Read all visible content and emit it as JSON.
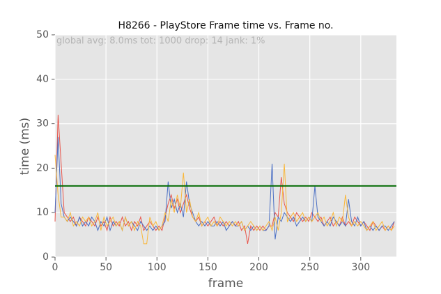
{
  "chart_data": {
    "type": "line",
    "title": "H8266 - PlayStore Frame time vs. Frame no.",
    "annotation": "global avg: 8.0ms tot: 1000 drop: 14 jank: 1%",
    "x_label": "frame",
    "y_label": "time (ms)",
    "xlim": [
      0,
      335
    ],
    "ylim": [
      0,
      50
    ],
    "xticks": [
      0,
      50,
      100,
      150,
      200,
      250,
      300
    ],
    "yticks": [
      0,
      10,
      20,
      30,
      40,
      50
    ],
    "grid": true,
    "threshold": {
      "value": 16,
      "color": "#0a6e0a"
    },
    "x": [
      0,
      3,
      6,
      9,
      12,
      15,
      18,
      21,
      24,
      27,
      30,
      33,
      36,
      39,
      42,
      45,
      48,
      51,
      54,
      57,
      60,
      63,
      66,
      69,
      72,
      75,
      78,
      81,
      84,
      87,
      90,
      93,
      96,
      99,
      102,
      105,
      108,
      111,
      114,
      117,
      120,
      123,
      126,
      129,
      132,
      135,
      138,
      141,
      144,
      147,
      150,
      153,
      156,
      159,
      162,
      165,
      168,
      171,
      174,
      177,
      180,
      183,
      186,
      189,
      192,
      195,
      198,
      201,
      204,
      207,
      210,
      213,
      216,
      219,
      222,
      225,
      228,
      231,
      234,
      237,
      240,
      243,
      246,
      249,
      252,
      255,
      258,
      261,
      264,
      267,
      270,
      273,
      276,
      279,
      282,
      285,
      288,
      291,
      294,
      297,
      300,
      303,
      306,
      309,
      312,
      315,
      318,
      321,
      324,
      327,
      330,
      333
    ],
    "series": [
      {
        "color": "#e8544a",
        "values": [
          8,
          32,
          21,
          10,
          9,
          8,
          9,
          7,
          9,
          8,
          7,
          9,
          8,
          7,
          9,
          7,
          8,
          6,
          9,
          7,
          8,
          7,
          9,
          7,
          8,
          6,
          8,
          7,
          9,
          6,
          7,
          8,
          7,
          6,
          7,
          6,
          9,
          12,
          14,
          11,
          13,
          10,
          12,
          14,
          11,
          9,
          8,
          9,
          7,
          8,
          7,
          8,
          9,
          7,
          8,
          7,
          8,
          7,
          8,
          7,
          8,
          6,
          7,
          3,
          7,
          6,
          7,
          6,
          7,
          6,
          7,
          7,
          10,
          9,
          18,
          12,
          10,
          9,
          8,
          10,
          9,
          8,
          9,
          8,
          10,
          9,
          8,
          9,
          7,
          8,
          9,
          7,
          8,
          7,
          9,
          7,
          8,
          7,
          9,
          8,
          7,
          8,
          7,
          6,
          8,
          7,
          6,
          7,
          6,
          7,
          6,
          8
        ]
      },
      {
        "color": "#4a6fc4",
        "values": [
          10,
          27,
          12,
          9,
          8,
          9,
          8,
          7,
          9,
          7,
          8,
          7,
          9,
          8,
          6,
          8,
          7,
          9,
          6,
          8,
          7,
          8,
          6,
          9,
          7,
          8,
          7,
          6,
          8,
          7,
          6,
          7,
          6,
          7,
          6,
          7,
          8,
          17,
          11,
          13,
          10,
          12,
          9,
          17,
          12,
          10,
          8,
          7,
          8,
          7,
          8,
          7,
          7,
          8,
          7,
          8,
          6,
          7,
          8,
          7,
          7,
          8,
          6,
          7,
          6,
          7,
          6,
          7,
          6,
          6,
          7,
          21,
          4,
          9,
          8,
          10,
          9,
          8,
          9,
          7,
          8,
          9,
          8,
          9,
          8,
          16,
          9,
          8,
          7,
          8,
          7,
          9,
          8,
          7,
          8,
          7,
          13,
          8,
          7,
          9,
          7,
          8,
          6,
          7,
          6,
          7,
          6,
          7,
          7,
          6,
          7,
          8
        ]
      },
      {
        "color": "#f9b73a",
        "values": [
          23,
          14,
          9,
          9,
          8,
          10,
          7,
          8,
          7,
          9,
          8,
          9,
          7,
          8,
          10,
          6,
          9,
          7,
          8,
          9,
          7,
          8,
          6,
          9,
          7,
          8,
          6,
          8,
          7,
          3,
          3,
          9,
          7,
          8,
          6,
          7,
          10,
          8,
          13,
          10,
          14,
          11,
          19,
          10,
          13,
          9,
          8,
          10,
          7,
          8,
          9,
          7,
          8,
          7,
          9,
          8,
          7,
          8,
          7,
          8,
          7,
          8,
          6,
          7,
          8,
          7,
          6,
          7,
          6,
          7,
          8,
          6,
          9,
          6,
          10,
          21,
          8,
          9,
          10,
          8,
          9,
          10,
          8,
          9,
          8,
          9,
          10,
          8,
          9,
          7,
          8,
          10,
          7,
          9,
          8,
          14,
          9,
          7,
          8,
          7,
          8,
          7,
          6,
          7,
          8,
          6,
          7,
          8,
          6,
          7,
          6,
          7
        ]
      }
    ]
  }
}
